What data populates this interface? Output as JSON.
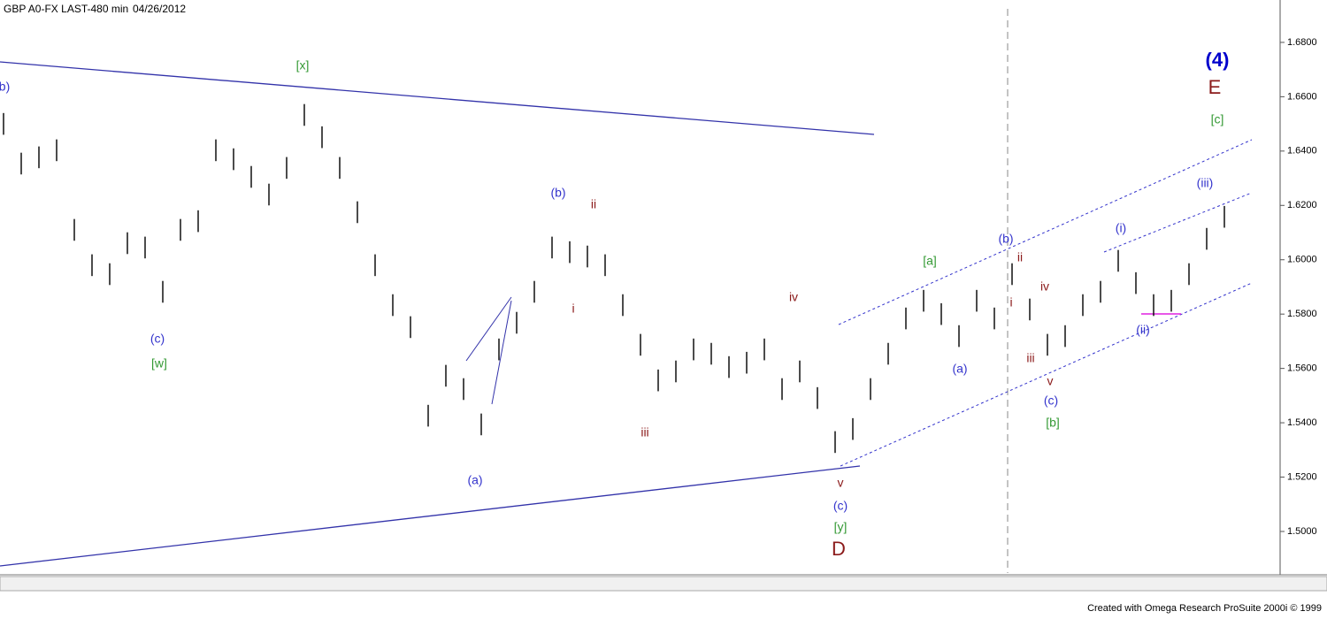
{
  "chart_data": {
    "type": "ohlc",
    "title": "GBP A0-FX LAST-480 min",
    "subtitle": "04/26/2012",
    "footer": "Created with Omega Research ProSuite 2000i © 1999",
    "color": "#111111",
    "high": [
      1.654,
      1.6394,
      1.6417,
      1.6443,
      1.615,
      1.602,
      1.5987,
      1.6101,
      1.6085,
      1.5922,
      1.615,
      1.6182,
      1.6443,
      1.641,
      1.6345,
      1.628,
      1.6378,
      1.6573,
      1.6491,
      1.6378,
      1.6215,
      1.602,
      1.5873,
      1.5792,
      1.5466,
      1.5613,
      1.5564,
      1.5434,
      1.571,
      1.5808,
      1.5922,
      1.6085,
      1.6068,
      1.6052,
      1.602,
      1.5873,
      1.5727,
      1.5596,
      1.5629,
      1.571,
      1.5694,
      1.5645,
      1.5661,
      1.571,
      1.5564,
      1.5629,
      1.5531,
      1.5369,
      1.5417,
      1.5564,
      1.5694,
      1.5824,
      1.5889,
      1.584,
      1.5759,
      1.5889,
      1.5824,
      1.5987,
      1.5857,
      1.5727,
      1.5759,
      1.5873,
      1.5922,
      1.6036,
      1.5954,
      1.5873,
      1.5889,
      1.5987,
      1.6117,
      1.6198
    ],
    "low": [
      1.646,
      1.6314,
      1.6337,
      1.6363,
      1.607,
      1.594,
      1.5907,
      1.6021,
      1.6005,
      1.5842,
      1.607,
      1.6102,
      1.6363,
      1.633,
      1.6265,
      1.62,
      1.6298,
      1.6493,
      1.6411,
      1.6298,
      1.6135,
      1.594,
      1.5793,
      1.5712,
      1.5386,
      1.5533,
      1.5484,
      1.5354,
      1.563,
      1.5728,
      1.5842,
      1.6005,
      1.5988,
      1.5972,
      1.594,
      1.5793,
      1.5647,
      1.5516,
      1.5549,
      1.563,
      1.5614,
      1.5565,
      1.5581,
      1.563,
      1.5484,
      1.5549,
      1.5451,
      1.5289,
      1.5337,
      1.5484,
      1.5614,
      1.5744,
      1.5809,
      1.576,
      1.5679,
      1.5809,
      1.5744,
      1.5907,
      1.5777,
      1.5647,
      1.5679,
      1.5793,
      1.5842,
      1.5956,
      1.5874,
      1.5793,
      1.5809,
      1.5907,
      1.6037,
      1.6118
    ],
    "ylim": [
      1.4847,
      1.6956
    ],
    "yticks": [
      {
        "value": 1.5,
        "label": "1.5000"
      },
      {
        "value": 1.52,
        "label": "1.5200"
      },
      {
        "value": 1.54,
        "label": "1.5400"
      },
      {
        "value": 1.56,
        "label": "1.5600"
      },
      {
        "value": 1.58,
        "label": "1.5800"
      },
      {
        "value": 1.6,
        "label": "1.6000"
      },
      {
        "value": 1.62,
        "label": "1.6200"
      },
      {
        "value": 1.64,
        "label": "1.6400"
      },
      {
        "value": 1.66,
        "label": "1.6600"
      },
      {
        "value": 1.68,
        "label": "1.6800"
      }
    ],
    "annotations": [
      {
        "text": "b)",
        "color": "#3333cc"
      },
      {
        "text": "[x]",
        "color": "#339933"
      },
      {
        "text": "(c)",
        "color": "#3333cc"
      },
      {
        "text": "[w]",
        "color": "#339933"
      },
      {
        "text": "(b)",
        "color": "#3333cc"
      },
      {
        "text": "ii",
        "color": "#8b1a1a"
      },
      {
        "text": "i",
        "color": "#8b1a1a"
      },
      {
        "text": "(a)",
        "color": "#3333cc"
      },
      {
        "text": "iii",
        "color": "#8b1a1a"
      },
      {
        "text": "iv",
        "color": "#8b1a1a"
      },
      {
        "text": "v",
        "color": "#8b1a1a"
      },
      {
        "text": "(c)",
        "color": "#3333cc"
      },
      {
        "text": "[y]",
        "color": "#339933"
      },
      {
        "text": "D",
        "color": "#8b1a1a"
      },
      {
        "text": "[a]",
        "color": "#339933"
      },
      {
        "text": "(a)",
        "color": "#3333cc"
      },
      {
        "text": "(b)",
        "color": "#3333cc"
      },
      {
        "text": "ii",
        "color": "#8b1a1a"
      },
      {
        "text": "i",
        "color": "#8b1a1a"
      },
      {
        "text": "iv",
        "color": "#8b1a1a"
      },
      {
        "text": "iii",
        "color": "#8b1a1a"
      },
      {
        "text": "v",
        "color": "#8b1a1a"
      },
      {
        "text": "(c)",
        "color": "#3333cc"
      },
      {
        "text": "[b]",
        "color": "#339933"
      },
      {
        "text": "(i)",
        "color": "#3333cc"
      },
      {
        "text": "(ii)",
        "color": "#3333cc"
      },
      {
        "text": "(iii)",
        "color": "#3333cc"
      },
      {
        "text": "[c]",
        "color": "#339933"
      },
      {
        "text": "E",
        "color": "#8b1a1a"
      },
      {
        "text": "(4)",
        "color": "#0000cc"
      }
    ]
  }
}
